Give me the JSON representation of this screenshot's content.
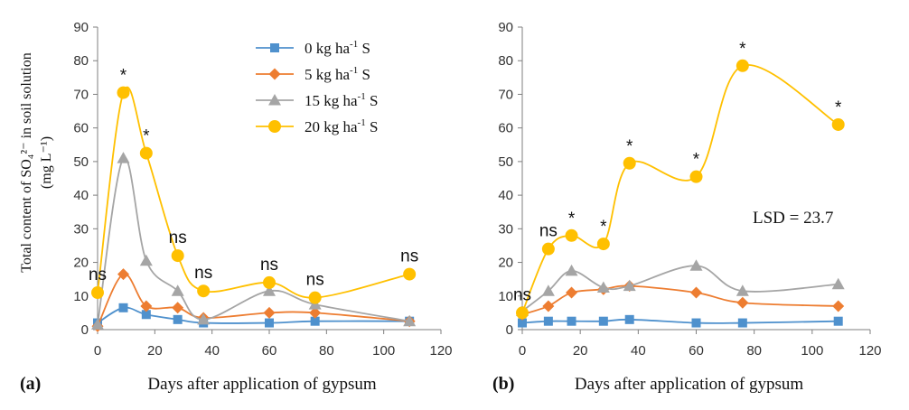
{
  "chart_data": [
    {
      "type": "line",
      "panel_label": "(a)",
      "ylabel": "Total content of SO₄²⁻ in soil solution (mg L⁻¹)",
      "ylabel_line1": "Total content of SO₄²⁻ in soil solution",
      "ylabel_line2": "(mg L⁻¹)",
      "xlabel": "Days after application of gypsum",
      "xlim": [
        0,
        120
      ],
      "ylim": [
        0,
        90
      ],
      "xticks": [
        0,
        20,
        40,
        60,
        80,
        100,
        120
      ],
      "yticks": [
        0,
        10,
        20,
        30,
        40,
        50,
        60,
        70,
        80,
        90
      ],
      "x": [
        0,
        9,
        17,
        28,
        37,
        60,
        76,
        109
      ],
      "series": [
        {
          "name": "0 kg ha-1 S",
          "color": "#4f91cd",
          "marker": "square",
          "values": [
            2,
            6.5,
            4.5,
            3,
            2,
            2,
            2.5,
            2.5
          ]
        },
        {
          "name": "5 kg ha-1 S",
          "color": "#ed7d31",
          "marker": "diamond",
          "values": [
            1,
            16.5,
            7,
            6.5,
            3.5,
            5,
            5,
            2.5
          ]
        },
        {
          "name": "15 kg ha-1 S",
          "color": "#a5a5a5",
          "marker": "triangle",
          "values": [
            1.5,
            51,
            20.5,
            11.5,
            3,
            11.5,
            7.5,
            2.5
          ]
        },
        {
          "name": "20 kg ha-1 S",
          "color": "#ffc000",
          "marker": "circle",
          "values": [
            11,
            70.5,
            52.5,
            22,
            11.5,
            14,
            9.5,
            16.5
          ]
        }
      ],
      "annotations": [
        {
          "x": 0,
          "y": 11,
          "text": "ns"
        },
        {
          "x": 9,
          "y": 70.5,
          "text": "*"
        },
        {
          "x": 17,
          "y": 52.5,
          "text": "*"
        },
        {
          "x": 28,
          "y": 22,
          "text": "ns"
        },
        {
          "x": 37,
          "y": 11.5,
          "text": "ns"
        },
        {
          "x": 60,
          "y": 14,
          "text": "ns"
        },
        {
          "x": 76,
          "y": 9.5,
          "text": "ns"
        },
        {
          "x": 109,
          "y": 16.5,
          "text": "ns"
        }
      ],
      "legend_position": "top-right"
    },
    {
      "type": "line",
      "panel_label": "(b)",
      "xlabel": "Days after application of gypsum",
      "xlim": [
        0,
        120
      ],
      "ylim": [
        0,
        90
      ],
      "xticks": [
        0,
        20,
        40,
        60,
        80,
        100,
        120
      ],
      "yticks": [
        0,
        10,
        20,
        30,
        40,
        50,
        60,
        70,
        80,
        90
      ],
      "x": [
        0,
        9,
        17,
        28,
        37,
        60,
        76,
        109
      ],
      "series": [
        {
          "name": "0 kg ha-1 S",
          "color": "#4f91cd",
          "marker": "square",
          "values": [
            2,
            2.5,
            2.5,
            2.5,
            3,
            2,
            2,
            2.5
          ]
        },
        {
          "name": "5 kg ha-1 S",
          "color": "#ed7d31",
          "marker": "diamond",
          "values": [
            4.5,
            7,
            11,
            12,
            13,
            11,
            8,
            7
          ]
        },
        {
          "name": "15 kg ha-1 S",
          "color": "#a5a5a5",
          "marker": "triangle",
          "values": [
            5.5,
            11.5,
            17.5,
            12.5,
            13,
            19,
            11.5,
            13.5
          ]
        },
        {
          "name": "20 kg ha-1 S",
          "color": "#ffc000",
          "marker": "circle",
          "values": [
            5,
            24,
            28,
            25.5,
            49.5,
            45.5,
            78.5,
            61
          ]
        }
      ],
      "annotations": [
        {
          "x": 0,
          "y": 5,
          "text": "ns"
        },
        {
          "x": 9,
          "y": 24,
          "text": "ns"
        },
        {
          "x": 17,
          "y": 28,
          "text": "*"
        },
        {
          "x": 28,
          "y": 25.5,
          "text": "*"
        },
        {
          "x": 37,
          "y": 49.5,
          "text": "*"
        },
        {
          "x": 60,
          "y": 45.5,
          "text": "*"
        },
        {
          "x": 76,
          "y": 78.5,
          "text": "*"
        },
        {
          "x": 109,
          "y": 61,
          "text": "*"
        }
      ],
      "lsd_text": "LSD = 23.7"
    }
  ]
}
